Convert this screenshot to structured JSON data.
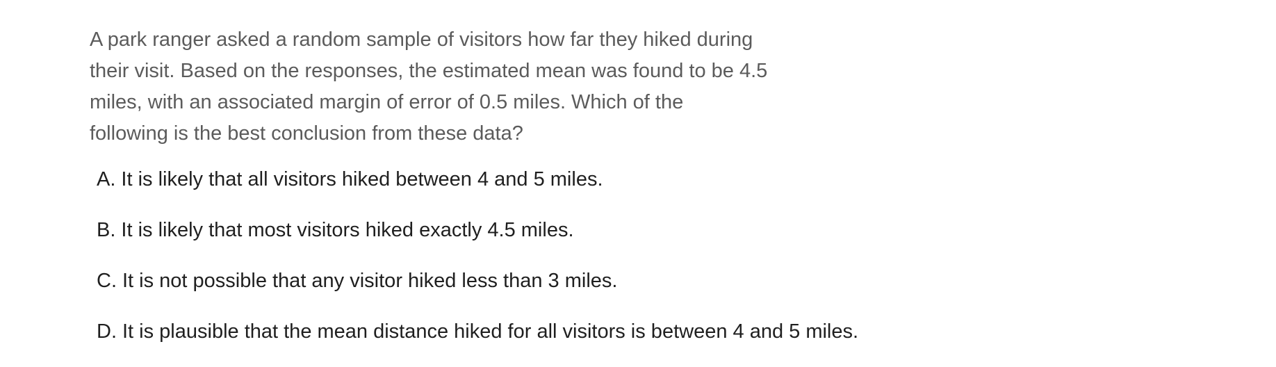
{
  "question": {
    "line1": "A park ranger asked a random sample of visitors how far they hiked during",
    "line2": "their visit. Based on the responses, the estimated mean was found to be 4.5",
    "line3": "miles, with an associated margin of error of 0.5 miles. Which of the",
    "line4": "following is the best conclusion from these data?"
  },
  "choices": [
    {
      "letter": "A.",
      "text": "It is likely that all visitors hiked between 4 and 5 miles."
    },
    {
      "letter": "B.",
      "text": "It is likely that most visitors hiked exactly 4.5 miles."
    },
    {
      "letter": "C.",
      "text": "It is not possible that any visitor hiked less than 3 miles."
    },
    {
      "letter": "D.",
      "text": "It is plausible that the mean distance hiked for all visitors is between 4 and 5 miles."
    }
  ]
}
